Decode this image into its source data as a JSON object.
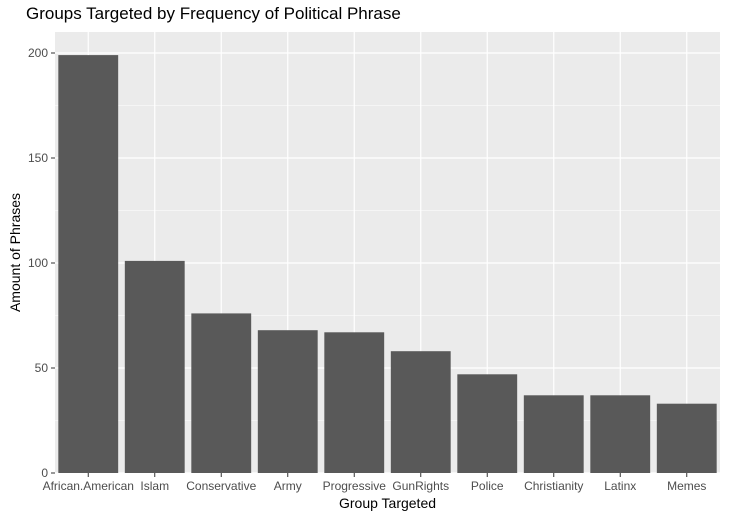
{
  "chart_data": {
    "type": "bar",
    "title": "Groups Targeted by Frequency of Political Phrase",
    "xlabel": "Group Targeted",
    "ylabel": "Amount of Phrases",
    "categories": [
      "African.American",
      "Islam",
      "Conservative",
      "Army",
      "Progressive",
      "GunRights",
      "Police",
      "Christianity",
      "Latinx",
      "Memes"
    ],
    "values": [
      199,
      101,
      76,
      68,
      67,
      58,
      47,
      37,
      37,
      33
    ],
    "ylim": [
      0,
      210
    ],
    "yticks": [
      0,
      50,
      100,
      150,
      200
    ],
    "grid": true,
    "panel_background": "#ebebeb",
    "grid_color": "#ffffff",
    "bar_color": "#595959"
  }
}
